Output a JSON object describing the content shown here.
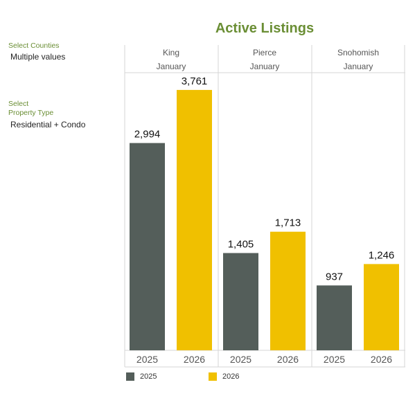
{
  "filters": {
    "counties": {
      "label": "Select Counties",
      "value": "Multiple values"
    },
    "property_type": {
      "label": "Select\nProperty Type",
      "value": "Residential + Condo"
    }
  },
  "colors": {
    "2025": "#545e5a",
    "2026": "#f0c000",
    "title": "#6a8e34"
  },
  "chart_data": {
    "type": "bar",
    "title": "Active Listings",
    "panels": [
      {
        "county": "King",
        "month": "January",
        "categories": [
          "2025",
          "2026"
        ],
        "values": [
          2994,
          3761
        ],
        "labels": [
          "2,994",
          "3,761"
        ]
      },
      {
        "county": "Pierce",
        "month": "January",
        "categories": [
          "2025",
          "2026"
        ],
        "values": [
          1405,
          1713
        ],
        "labels": [
          "1,405",
          "1,713"
        ]
      },
      {
        "county": "Snohomish",
        "month": "January",
        "categories": [
          "2025",
          "2026"
        ],
        "values": [
          937,
          1246
        ],
        "labels": [
          "937",
          "1,246"
        ]
      }
    ],
    "legend": [
      "2025",
      "2026"
    ],
    "legend_position": "bottom",
    "ylim": [
      0,
      4000
    ]
  }
}
